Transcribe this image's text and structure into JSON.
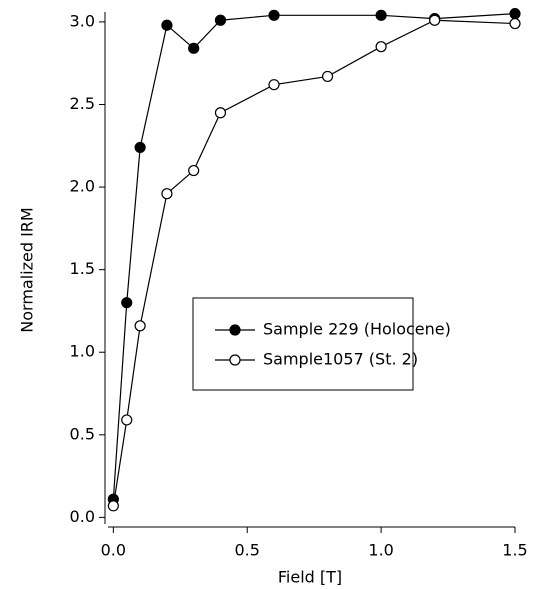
{
  "chart_data": {
    "type": "line",
    "x_label": "Field [T]",
    "y_label": "Normalized IRM",
    "xlim": [
      -0.02,
      1.5
    ],
    "ylim": [
      -0.04,
      3.06
    ],
    "xticks": [
      {
        "value": 0,
        "label": "0.0"
      },
      {
        "value": 0.5,
        "label": "0.5"
      },
      {
        "value": 1,
        "label": "1.0"
      },
      {
        "value": 1.5,
        "label": "1.5"
      }
    ],
    "yticks": [
      {
        "value": 0,
        "label": "0.0"
      },
      {
        "value": 0.5,
        "label": "0.5"
      },
      {
        "value": 1,
        "label": "1.0"
      },
      {
        "value": 1.5,
        "label": "1.5"
      },
      {
        "value": 2,
        "label": "2.0"
      },
      {
        "value": 2.5,
        "label": "2.5"
      },
      {
        "value": 3,
        "label": "3.0"
      }
    ],
    "series": [
      {
        "name": "Sample 229 (Holocene)",
        "color": "#000000",
        "marker": "filled",
        "x": [
          0,
          0.05,
          0.1,
          0.2,
          0.3,
          0.4,
          0.6,
          1.0,
          1.2,
          1.5
        ],
        "values": [
          0.11,
          1.3,
          2.24,
          2.98,
          2.84,
          3.01,
          3.04,
          3.04,
          3.02,
          3.05
        ]
      },
      {
        "name": "Sample1057 (St. 2)",
        "color": "#000000",
        "marker": "open",
        "x": [
          0,
          0.05,
          0.1,
          0.2,
          0.3,
          0.4,
          0.6,
          0.8,
          1.0,
          1.2,
          1.5
        ],
        "values": [
          0.07,
          0.59,
          1.16,
          1.96,
          2.1,
          2.45,
          2.62,
          2.67,
          2.85,
          3.01,
          2.99
        ]
      }
    ]
  }
}
